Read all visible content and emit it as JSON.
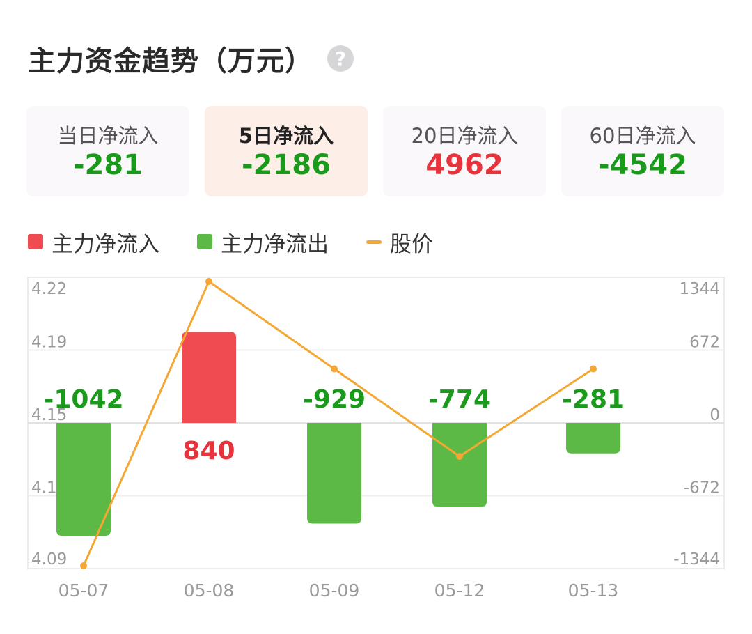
{
  "header": {
    "title": "主力资金趋势（万元）",
    "help_icon": "question-circle-icon"
  },
  "cards": [
    {
      "label": "当日净流入",
      "value": "-281",
      "color": "#1a9a1a",
      "active": false
    },
    {
      "label": "5日净流入",
      "value": "-2186",
      "color": "#1a9a1a",
      "active": true
    },
    {
      "label": "20日净流入",
      "value": "4962",
      "color": "#e8323c",
      "active": false
    },
    {
      "label": "60日净流入",
      "value": "-4542",
      "color": "#1a9a1a",
      "active": false
    }
  ],
  "colors": {
    "inflow": "#ef4b50",
    "outflow": "#5cb946",
    "price": "#f4a733",
    "inflow_text": "#e8323c",
    "outflow_text": "#1a9a1a"
  },
  "chart_data": {
    "type": "bar",
    "categories": [
      "05-07",
      "05-08",
      "05-09",
      "05-12",
      "05-13"
    ],
    "series": [
      {
        "name": "主力净流入",
        "kind": "bar-positive"
      },
      {
        "name": "主力净流出",
        "kind": "bar-negative"
      },
      {
        "name": "股价",
        "kind": "line"
      }
    ],
    "flow_values": [
      -1042,
      840,
      -929,
      -774,
      -281
    ],
    "flow_labels": [
      "-1042",
      "840",
      "-929",
      "-774",
      "-281"
    ],
    "price_values": [
      4.09,
      4.22,
      4.18,
      4.14,
      4.18
    ],
    "left_axis": {
      "ticks": [
        "4.22",
        "4.19",
        "4.15",
        "4.12",
        "4.09"
      ],
      "min": 4.09,
      "max": 4.22
    },
    "right_axis": {
      "ticks": [
        "1344",
        "672",
        "0",
        "-672",
        "-1344"
      ],
      "min": -1344,
      "max": 1344
    },
    "grid": true
  }
}
